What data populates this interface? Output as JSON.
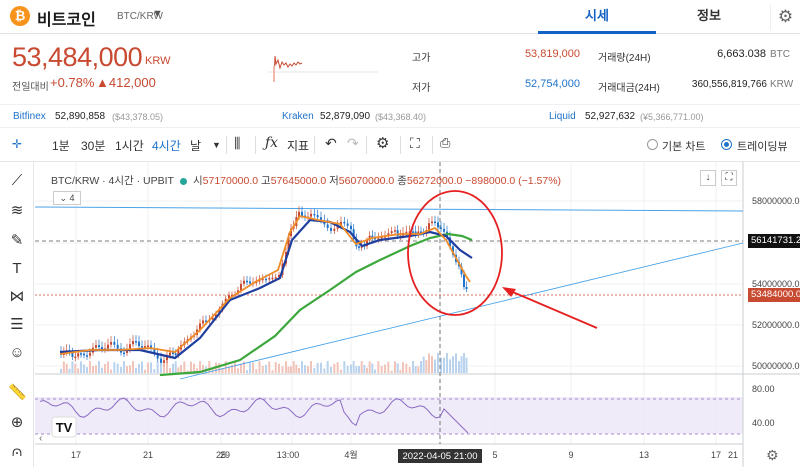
{
  "header": {
    "coin_icon_glyph": "₿",
    "coin_name": "비트코인",
    "pair": "BTC/KRW",
    "tabs": [
      "시세",
      "정보"
    ]
  },
  "summary": {
    "price": "53,484,000",
    "price_unit": "KRW",
    "change_label": "전일대비",
    "change_pct": "+0.78%",
    "change_abs": "▲412,000",
    "high_label": "고가",
    "high": "53,819,000",
    "low_label": "저가",
    "low": "52,754,000",
    "volume_label": "거래량(24H)",
    "volume": "6,663.038",
    "volume_unit": "BTC",
    "amount_label": "거래대금(24H)",
    "amount": "360,556,819,766",
    "amount_unit": "KRW"
  },
  "exchanges": [
    {
      "name": "Bitfinex",
      "value": "52,890,858",
      "sub": "($43,378.05)"
    },
    {
      "name": "Kraken",
      "value": "52,879,090",
      "sub": "($43,368.40)"
    },
    {
      "name": "Liquid",
      "value": "52,927,632",
      "sub": "(¥5,366,771.00)"
    }
  ],
  "toolbar": {
    "intervals": [
      "1분",
      "30분",
      "1시간",
      "4시간",
      "날"
    ],
    "active_interval": "4시간",
    "indicator_label": "지표",
    "chart_modes": [
      "기본 차트",
      "트레이딩뷰"
    ],
    "selected_mode": "트레이딩뷰"
  },
  "legend": {
    "symbol": "BTC/KRW · 4시간 · UPBIT",
    "open_label": "시",
    "open": "57170000.0",
    "high_label": "고",
    "high": "57645000.0",
    "low_label": "저",
    "low": "56070000.0",
    "close_label": "종",
    "close": "56272000.0",
    "change": "−898000.0 (−1.57%)",
    "collapse": "4"
  },
  "price_axis": {
    "ticks": [
      "58000000.0",
      "56000000.0",
      "54000000.0",
      "52000000.0",
      "50000000.0"
    ],
    "crosshair_value": "56141731.2",
    "last_price_tag": "53484000.0"
  },
  "rsi_axis": {
    "ticks": [
      "80.00",
      "40.00"
    ]
  },
  "time_axis": {
    "ticks": [
      "17",
      "21",
      "25",
      "29",
      "13:00",
      "4월",
      "5",
      "9",
      "13",
      "17",
      "21"
    ],
    "crosshair_label": "2022-04-05  21:00"
  },
  "colors": {
    "up": "#c84a31",
    "down": "#1f72c9",
    "ma_short": "#f08c28",
    "ma_mid": "#1f3e9e",
    "ma_long": "#3ca83c",
    "trendline": "#4aa3e8",
    "annotation": "#e62020",
    "rsi": "#8a6bc4"
  }
}
